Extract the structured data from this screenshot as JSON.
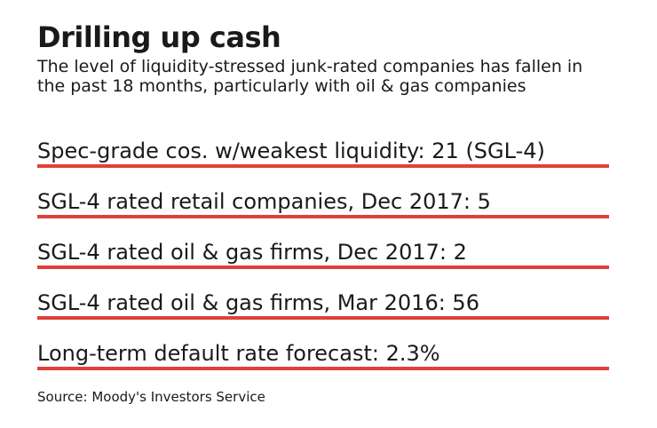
{
  "header": {
    "title": "Drilling up cash",
    "subtitle": "The level of liquidity-stressed junk-rated companies has fallen in the past 18 months, particularly with oil & gas companies"
  },
  "stats": [
    {
      "text": "Spec-grade cos. w/weakest liquidity: 21 (SGL-4)"
    },
    {
      "text": "SGL-4 rated retail companies, Dec 2017: 5"
    },
    {
      "text": "SGL-4 rated oil & gas firms, Dec 2017: 2"
    },
    {
      "text": "SGL-4 rated oil & gas firms, Mar 2016: 56"
    },
    {
      "text": "Long-term default rate forecast: 2.3%"
    }
  ],
  "footer": {
    "source": "Source: Moody's Investors Service"
  },
  "colors": {
    "accent_bar": "#e0403a",
    "text": "#1a1a1a",
    "background": "#ffffff"
  }
}
